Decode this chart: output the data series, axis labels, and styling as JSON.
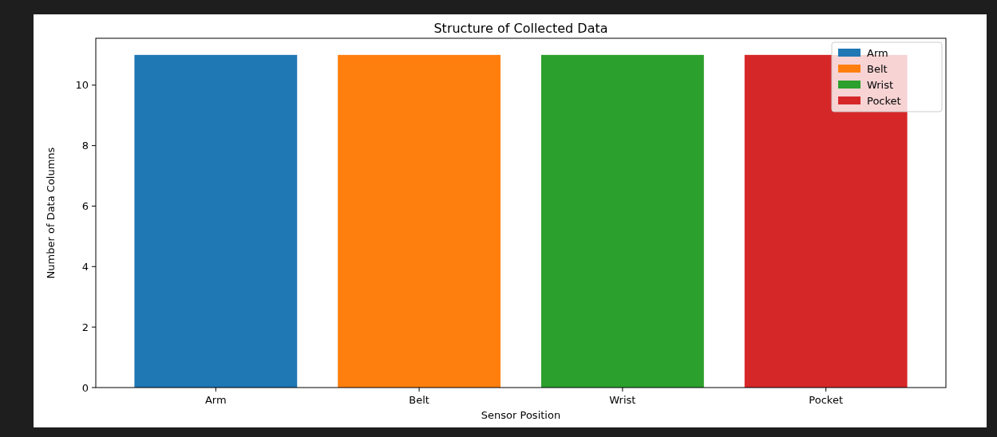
{
  "chart_data": {
    "type": "bar",
    "title": "Structure of Collected Data",
    "xlabel": "Sensor Position",
    "ylabel": "Number of Data Columns",
    "categories": [
      "Arm",
      "Belt",
      "Wrist",
      "Pocket"
    ],
    "series": [
      {
        "name": "Arm",
        "color": "#1f77b4",
        "values": [
          11,
          null,
          null,
          null
        ]
      },
      {
        "name": "Belt",
        "color": "#ff7f0e",
        "values": [
          null,
          11,
          null,
          null
        ]
      },
      {
        "name": "Wrist",
        "color": "#2ca02c",
        "values": [
          null,
          null,
          11,
          null
        ]
      },
      {
        "name": "Pocket",
        "color": "#d62728",
        "values": [
          null,
          null,
          null,
          11
        ]
      }
    ],
    "ylim": [
      0,
      11.55
    ],
    "yticks": [
      0,
      2,
      4,
      6,
      8,
      10
    ],
    "legend": "top right",
    "grid": false
  }
}
